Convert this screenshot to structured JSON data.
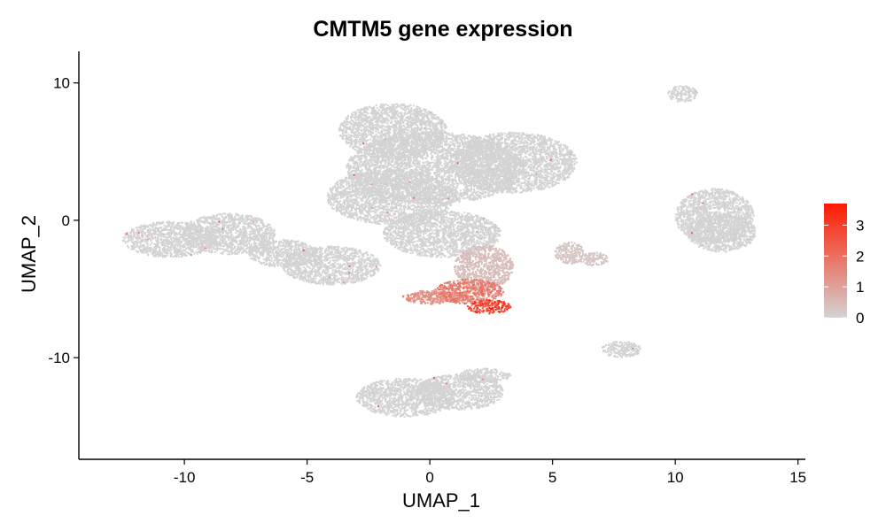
{
  "chart_data": {
    "type": "scatter",
    "title": "CMTM5 gene expression",
    "xlabel": "UMAP_1",
    "ylabel": "UMAP_2",
    "xlim": [
      -14.3,
      15.3
    ],
    "ylim": [
      -17.4,
      12.3
    ],
    "xticks": [
      -10,
      -5,
      0,
      5,
      10,
      15
    ],
    "xtick_labels": [
      "-10",
      "-5",
      "0",
      "5",
      "10",
      "15"
    ],
    "yticks": [
      -10,
      0,
      10
    ],
    "ytick_labels": [
      "-10",
      "0",
      "10"
    ],
    "grid": false,
    "color_scale": {
      "label_values": [
        0,
        1,
        2,
        3
      ],
      "labels": [
        "0",
        "1",
        "2",
        "3"
      ],
      "min": 0,
      "max": 3.7,
      "low_color": "#d3d3d3",
      "high_color": "#ff1a00"
    },
    "legend_position": "right",
    "clusters": [
      {
        "center": [
          -10.6,
          -1.4
        ],
        "radius": [
          1.9,
          1.3
        ],
        "expression": 0
      },
      {
        "center": [
          -8.2,
          -1.0
        ],
        "radius": [
          1.9,
          1.5
        ],
        "expression": 0
      },
      {
        "center": [
          -6.0,
          -2.4
        ],
        "radius": [
          1.4,
          1.0
        ],
        "expression": 0
      },
      {
        "center": [
          -4.0,
          -3.3
        ],
        "radius": [
          2.0,
          1.4
        ],
        "expression": 0
      },
      {
        "center": [
          -1.5,
          6.5
        ],
        "radius": [
          2.2,
          2.0
        ],
        "expression": 0
      },
      {
        "center": [
          0.2,
          3.8
        ],
        "radius": [
          3.6,
          2.6
        ],
        "expression": 0
      },
      {
        "center": [
          3.4,
          4.2
        ],
        "radius": [
          2.6,
          2.2
        ],
        "expression": 0
      },
      {
        "center": [
          -1.6,
          1.7
        ],
        "radius": [
          2.6,
          2.0
        ],
        "expression": 0
      },
      {
        "center": [
          0.5,
          -1.0
        ],
        "radius": [
          2.4,
          1.7
        ],
        "expression": 0
      },
      {
        "center": [
          2.2,
          -3.4
        ],
        "radius": [
          1.2,
          1.6
        ],
        "expression": 0.5
      },
      {
        "center": [
          1.6,
          -5.2
        ],
        "radius": [
          1.4,
          0.9
        ],
        "expression": 2.0
      },
      {
        "center": [
          2.4,
          -6.3
        ],
        "radius": [
          0.9,
          0.5
        ],
        "expression": 3.5
      },
      {
        "center": [
          0.2,
          -5.6
        ],
        "radius": [
          1.3,
          0.5
        ],
        "expression": 1.6
      },
      {
        "center": [
          11.6,
          0.3
        ],
        "radius": [
          1.6,
          2.0
        ],
        "expression": 0
      },
      {
        "center": [
          11.9,
          -0.9
        ],
        "radius": [
          1.4,
          1.4
        ],
        "expression": 0
      },
      {
        "center": [
          10.3,
          9.2
        ],
        "radius": [
          0.6,
          0.6
        ],
        "expression": 0
      },
      {
        "center": [
          5.7,
          -2.4
        ],
        "radius": [
          0.6,
          0.8
        ],
        "expression": 0.3
      },
      {
        "center": [
          6.7,
          -2.8
        ],
        "radius": [
          0.6,
          0.5
        ],
        "expression": 0.3
      },
      {
        "center": [
          7.8,
          -9.4
        ],
        "radius": [
          0.8,
          0.6
        ],
        "expression": 0
      },
      {
        "center": [
          -1.0,
          -12.9
        ],
        "radius": [
          2.0,
          1.4
        ],
        "expression": 0
      },
      {
        "center": [
          1.2,
          -12.5
        ],
        "radius": [
          1.8,
          1.3
        ],
        "expression": 0
      },
      {
        "center": [
          2.2,
          -11.3
        ],
        "radius": [
          1.1,
          0.5
        ],
        "expression": 0
      }
    ]
  }
}
